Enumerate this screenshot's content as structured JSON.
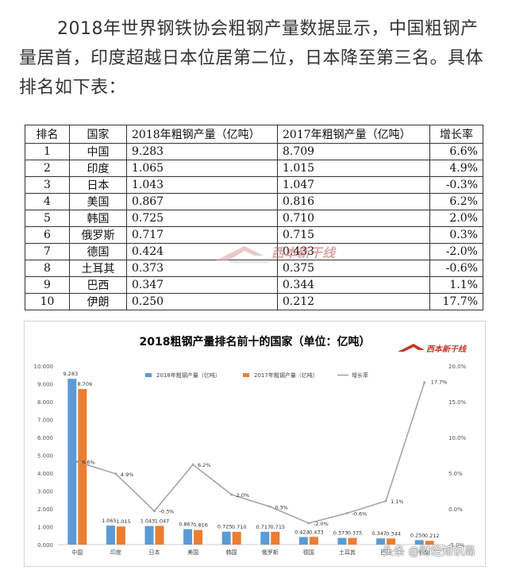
{
  "intro_text": "2018年世界钢铁协会粗钢产量数据显示，中国粗钢产量居首，印度超越日本位居第二位，日本降至第三名。具体排名如下表：",
  "table": {
    "headers": [
      "排名",
      "国家",
      "2018年粗钢产量（亿吨）",
      "2017年粗钢产量（亿吨）",
      "增长率"
    ],
    "rows": [
      [
        "1",
        "中国",
        "9.283",
        "8.709",
        "6.6%"
      ],
      [
        "2",
        "印度",
        "1.065",
        "1.015",
        "4.9%"
      ],
      [
        "3",
        "日本",
        "1.043",
        "1.047",
        "-0.3%"
      ],
      [
        "4",
        "美国",
        "0.867",
        "0.816",
        "6.2%"
      ],
      [
        "5",
        "韩国",
        "0.725",
        "0.710",
        "2.0%"
      ],
      [
        "6",
        "俄罗斯",
        "0.717",
        "0.715",
        "0.3%"
      ],
      [
        "7",
        "德国",
        "0.424",
        "0.433",
        "-2.0%"
      ],
      [
        "8",
        "土耳其",
        "0.373",
        "0.375",
        "-0.6%"
      ],
      [
        "9",
        "巴西",
        "0.347",
        "0.344",
        "1.1%"
      ],
      [
        "10",
        "伊朗",
        "0.250",
        "0.212",
        "17.7%"
      ]
    ]
  },
  "logo_text": "西本新干线",
  "footer_watermark": "头条 @财经知识局",
  "colors": {
    "s2018": "#5b9bd5",
    "s2017": "#ed7d31",
    "growth": "#a5a5a5",
    "title": "#1f5fa8"
  },
  "chart_data": {
    "type": "bar",
    "title": "2018粗钢产量排名前十的国家（单位：亿吨）",
    "categories": [
      "中国",
      "印度",
      "日本",
      "美国",
      "韩国",
      "俄罗斯",
      "德国",
      "土耳其",
      "巴西",
      "伊朗"
    ],
    "series": [
      {
        "name": "2018年粗钢产量（亿吨）",
        "type": "bar",
        "axis": "left",
        "values": [
          9.283,
          1.065,
          1.043,
          0.867,
          0.725,
          0.717,
          0.424,
          0.373,
          0.347,
          0.25
        ]
      },
      {
        "name": "2017年粗钢产量（亿吨）",
        "type": "bar",
        "axis": "left",
        "values": [
          8.709,
          1.015,
          1.047,
          0.816,
          0.71,
          0.715,
          0.433,
          0.375,
          0.344,
          0.212
        ]
      },
      {
        "name": "增长率",
        "type": "line",
        "axis": "right",
        "values": [
          6.6,
          4.9,
          -0.3,
          6.2,
          2.0,
          0.3,
          -2.0,
          -0.6,
          1.1,
          17.7
        ]
      }
    ],
    "left_axis": {
      "ylim": [
        0,
        10
      ],
      "ticks": [
        "0.000",
        "1.000",
        "2.000",
        "3.000",
        "4.000",
        "5.000",
        "6.000",
        "7.000",
        "8.000",
        "9.000",
        "10.000"
      ]
    },
    "right_axis": {
      "ylim": [
        -5,
        20
      ],
      "ticks": [
        "-5.0%",
        "0.0%",
        "5.0%",
        "10.0%",
        "15.0%",
        "20.0%"
      ]
    },
    "legend_position": "top",
    "grid": false
  }
}
